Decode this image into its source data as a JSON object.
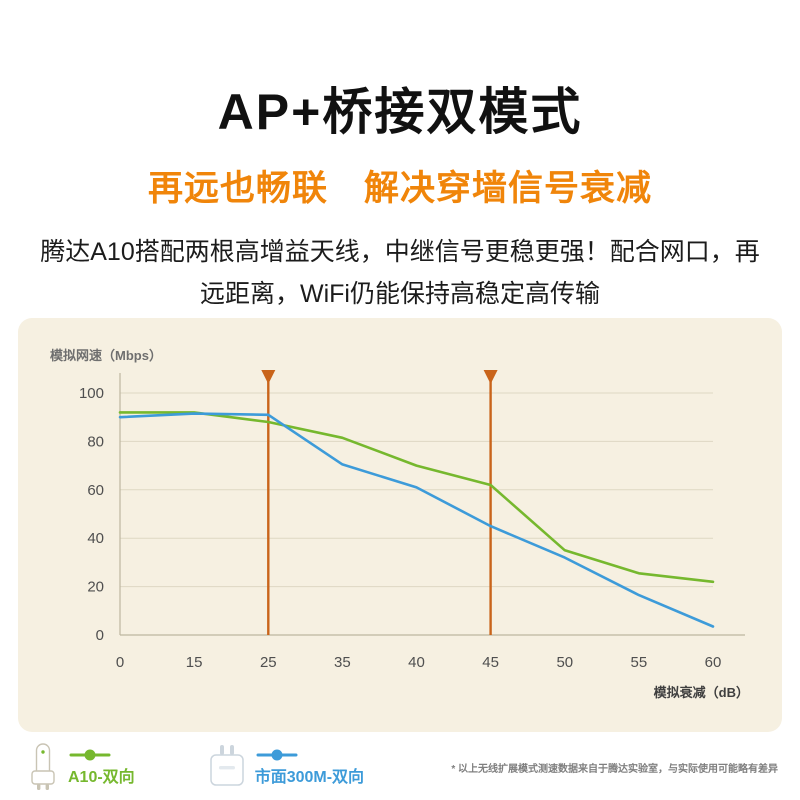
{
  "header": {
    "title": "AP+桥接双模式",
    "subtitle": "再远也畅联　解决穿墙信号衰减",
    "description": "腾达A10搭配两根高增益天线，中继信号更稳更强！配合网口，再远距离，WiFi仍能保持高稳定高传输"
  },
  "chart_data": {
    "type": "line",
    "title": "",
    "xlabel": "模拟衰减（dB）",
    "ylabel": "模拟网速（Mbps）",
    "x_categories": [
      "0",
      "15",
      "25",
      "35",
      "40",
      "45",
      "50",
      "55",
      "60"
    ],
    "y_ticks": [
      0,
      20,
      40,
      60,
      80,
      100
    ],
    "ylim": [
      0,
      100
    ],
    "grid": true,
    "legend_position": "bottom-left",
    "background": "#f6f0e1",
    "series": [
      {
        "name": "A10-双向",
        "color": "#76b82e",
        "values": [
          92,
          92,
          88,
          81.5,
          70,
          62,
          35,
          25.5,
          22
        ]
      },
      {
        "name": "市面300M-双向",
        "color": "#3d9bd9",
        "values": [
          90,
          91.5,
          91,
          70.5,
          61,
          45,
          32,
          16.5,
          3.5
        ]
      }
    ],
    "vertical_markers": {
      "color": "#c9641a",
      "x_values": [
        "25",
        "45"
      ]
    }
  },
  "legend": {
    "items": [
      {
        "label": "A10-双向",
        "color": "#76b82e",
        "icon": "a10-extender-icon"
      },
      {
        "label": "市面300M-双向",
        "color": "#3d9bd9",
        "icon": "market-extender-icon"
      }
    ]
  },
  "footnote": "* 以上无线扩展模式测速数据来自于腾达实验室，与实际使用可能略有差异",
  "colors": {
    "accent_orange": "#f0850a",
    "marker_orange": "#c9641a",
    "green": "#76b82e",
    "blue": "#3d9bd9",
    "panel_bg": "#f6f0e1",
    "grid_line": "#ded7c3",
    "axis_line": "#bdb69f"
  }
}
